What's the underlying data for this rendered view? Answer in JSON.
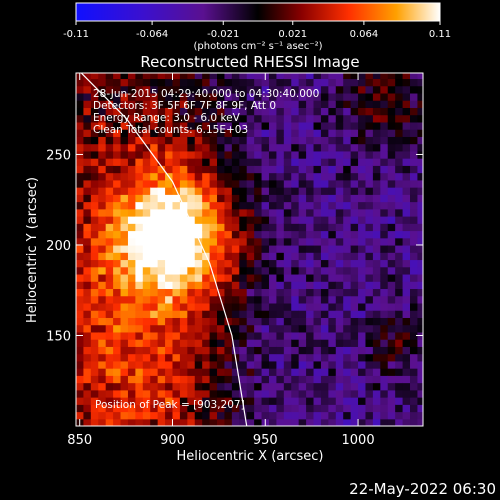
{
  "chart_data": {
    "type": "heatmap",
    "title": "Reconstructed RHESSI Image",
    "xlabel": "Heliocentric X (arcsec)",
    "ylabel": "Heliocentric Y (arcsec)",
    "xlim": [
      848,
      1035
    ],
    "ylim": [
      100,
      295
    ],
    "xticks": [
      850,
      900,
      950,
      1000
    ],
    "yticks": [
      150,
      200,
      250
    ],
    "colorbar": {
      "min": -0.11,
      "max": 0.11,
      "tick_labels": [
        "-0.11",
        "-0.064",
        "-0.021",
        "0.021",
        "0.064",
        "0.11"
      ],
      "tick_values": [
        -0.11,
        -0.064,
        -0.021,
        0.021,
        0.064,
        0.11
      ],
      "unit_label": "(photons cm⁻² s⁻¹ asec⁻²)"
    },
    "annotations": [
      "28-Jun-2015 04:29:40.000 to 04:30:40.000",
      "Detectors: 3F 5F 6F 7F 8F 9F, Att 0",
      "Energy Range: 3.0 - 6.0 keV",
      "Clean     Total counts: 6.15E+03"
    ],
    "peak_label": "Position of Peak = [903,207]",
    "peak": {
      "x": 903,
      "y": 207
    },
    "limb_curve": [
      [
        846,
        300
      ],
      [
        875,
        270
      ],
      [
        900,
        235
      ],
      [
        920,
        190
      ],
      [
        932,
        150
      ],
      [
        940,
        100
      ]
    ],
    "footer_date": "22-May-2022 06:30"
  }
}
